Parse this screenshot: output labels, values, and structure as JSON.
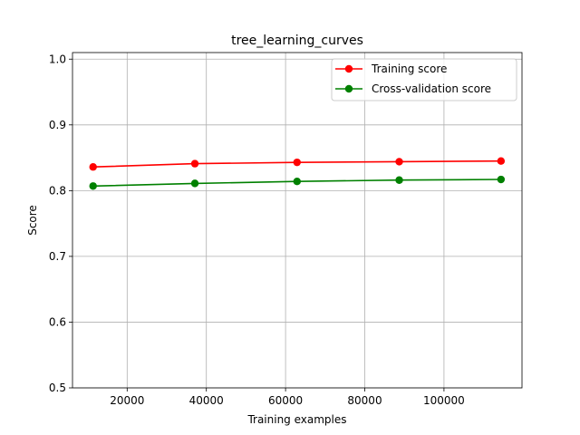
{
  "chart_data": {
    "type": "line",
    "title": "tree_learning_curves",
    "xlabel": "Training examples",
    "ylabel": "Score",
    "xlim": [
      6200,
      119700
    ],
    "ylim": [
      0.5,
      1.01
    ],
    "xticks": [
      20000,
      40000,
      60000,
      80000,
      100000
    ],
    "yticks": [
      0.5,
      0.6,
      0.7,
      0.8,
      0.9,
      1.0
    ],
    "grid": true,
    "legend_position": "top-right",
    "x": [
      11400,
      37100,
      62900,
      88700,
      114400
    ],
    "series": [
      {
        "name": "Training score",
        "color": "#ff0000",
        "values": [
          0.836,
          0.841,
          0.843,
          0.844,
          0.845
        ]
      },
      {
        "name": "Cross-validation score",
        "color": "#008000",
        "values": [
          0.807,
          0.811,
          0.814,
          0.816,
          0.817
        ]
      }
    ]
  }
}
